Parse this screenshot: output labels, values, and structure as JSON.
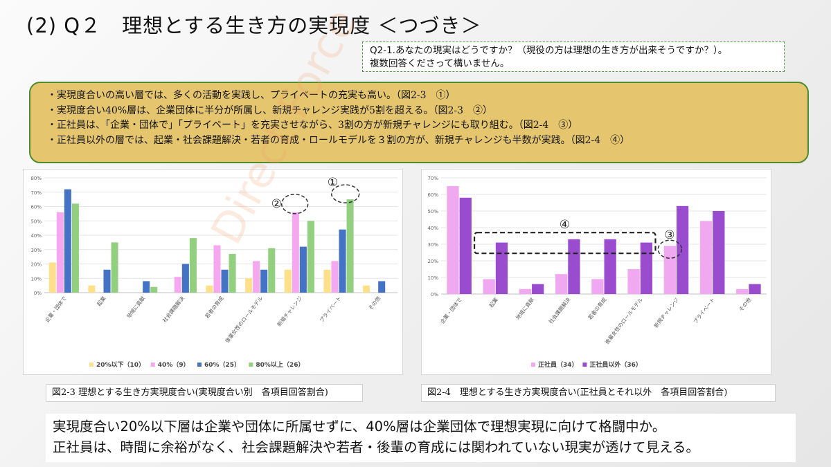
{
  "title": "(2) Q２　理想とする生き方の実現度 ＜つづき＞",
  "question": {
    "line1": "Q2-1.あなたの現実はどうですか？（現役の方は理想の生き方が出来そうですか？）。",
    "line2": "複数回答くださって構いません。"
  },
  "summary": [
    "・実現度合いの高い層では、多くの活動を実践し、プライベートの充実も高い。（図2-3　①）",
    "・実現度合い40%層は、企業団体に半分が所属し、新規チャレンジ実践が5割を超える。（図2-3　②）",
    "・正社員は、「企業・団体で」「プライベート」を充実させながら、3割の方が新規チャレンジにも取り組む。（図2-4　③）",
    "・正社員以外の層では、起業・社会課題解決・若者の育成・ロールモデルを３割の方が、新規チャレンジも半数が実践。（図2-4　④）"
  ],
  "watermark": "Direct Force",
  "captions": {
    "chart1": "図2-3 理想とする生き方実現度合い(実現度合い別　各項目回答割合)",
    "chart2": "図2-4　理想とする生き方実現度合い(正社員とそれ以外　各項目回答割合)"
  },
  "conclusion": {
    "line1": "実現度合い20%以下層は企業や団体に所属せずに、40%層は企業団体で理想実現に向けて格闘中か。",
    "line2": "正社員は、時間に余裕がなく、社会課題解決や若者・後輩の育成には関われていない現実が透けて見える。"
  },
  "chart_data": [
    {
      "type": "bar",
      "categories": [
        "企業・団体で",
        "起業",
        "地域に貢献",
        "社会課題解決",
        "若者の育成",
        "後輩女性のロールモデル",
        "新規チャレンジ",
        "プライベート",
        "その他"
      ],
      "series": [
        {
          "name": "20%以下（10）",
          "color": "#ffe08a",
          "values": [
            21,
            5,
            0,
            0,
            5,
            10,
            16,
            16,
            5
          ]
        },
        {
          "name": "40%（9）",
          "color": "#f5a8f0",
          "values": [
            56,
            0,
            0,
            11,
            33,
            22,
            56,
            22,
            0
          ]
        },
        {
          "name": "60%（25）",
          "color": "#4472c4",
          "values": [
            72,
            16,
            8,
            20,
            16,
            16,
            32,
            44,
            8
          ]
        },
        {
          "name": "80%以上（26）",
          "color": "#92d080",
          "values": [
            62,
            35,
            4,
            38,
            27,
            31,
            50,
            65,
            0
          ]
        }
      ],
      "ylim": [
        0,
        80
      ],
      "yticks": [
        "0%",
        "10%",
        "20%",
        "30%",
        "40%",
        "50%",
        "60%",
        "70%",
        "80%"
      ],
      "legend": "bottom",
      "annotations": [
        {
          "label": "①",
          "category": "プライベート"
        },
        {
          "label": "②",
          "category": "新規チャレンジ"
        }
      ]
    },
    {
      "type": "bar",
      "categories": [
        "企業・団体で",
        "起業",
        "地域に貢献",
        "社会課題解決",
        "若者の育成",
        "後輩女性のロールモデル",
        "新規チャレンジ",
        "プライベート",
        "その他"
      ],
      "series": [
        {
          "name": "正社員（34）",
          "color": "#f0a8f0",
          "values": [
            65,
            9,
            3,
            12,
            9,
            15,
            29,
            44,
            3
          ]
        },
        {
          "name": "正社員以外（36）",
          "color": "#9a4ccf",
          "values": [
            58,
            31,
            6,
            33,
            33,
            31,
            53,
            50,
            6
          ]
        }
      ],
      "ylim": [
        0,
        70
      ],
      "yticks": [
        "0%",
        "10%",
        "20%",
        "30%",
        "40%",
        "50%",
        "60%",
        "70%"
      ],
      "legend": "bottom",
      "annotations": [
        {
          "label": "③",
          "category": "新規チャレンジ"
        },
        {
          "label": "④",
          "category": "起業〜後輩女性のロールモデル"
        }
      ]
    }
  ]
}
